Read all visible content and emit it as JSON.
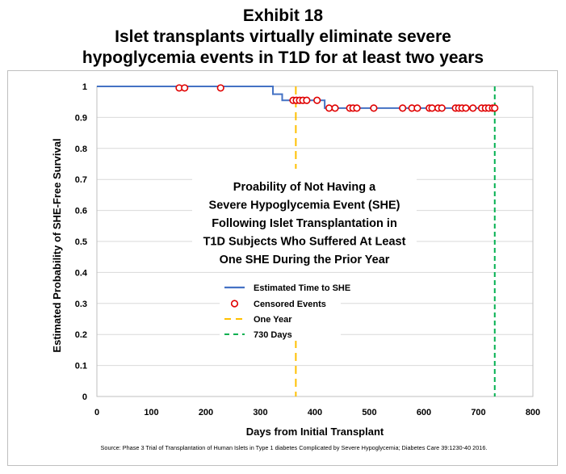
{
  "header": {
    "line1": "Exhibit 18",
    "line2": "Islet transplants virtually eliminate severe",
    "line3": "hypoglycemia events in T1D for at least two years"
  },
  "chart_data": {
    "type": "line",
    "xlabel": "Days from Initial Transplant",
    "ylabel": "Estimated Probability of SHE-Free Survival",
    "xlim": [
      0,
      800
    ],
    "ylim": [
      0,
      1
    ],
    "xticks": [
      0,
      100,
      200,
      300,
      400,
      500,
      600,
      700,
      800
    ],
    "yticks": [
      0,
      0.1,
      0.2,
      0.3,
      0.4,
      0.5,
      0.6,
      0.7,
      0.8,
      0.9,
      1
    ],
    "ytick_labels": [
      "0",
      "0.1",
      "0.2",
      "0.3",
      "0.4",
      "0.5",
      "0.6",
      "0.7",
      "0.8",
      "0.9",
      "1"
    ],
    "grid": "horizontal",
    "series": [
      {
        "name": "Estimated Time to SHE",
        "style": "step",
        "color": "#4472c4",
        "x": [
          0,
          323,
          323,
          340,
          340,
          418,
          418,
          730
        ],
        "y": [
          1.0,
          1.0,
          0.975,
          0.975,
          0.955,
          0.955,
          0.93,
          0.93
        ]
      },
      {
        "name": "Censored Events",
        "style": "marker",
        "color": "#e00000",
        "x": [
          151,
          161,
          227,
          360,
          366,
          372,
          378,
          385,
          404,
          426,
          437,
          464,
          470,
          477,
          508,
          561,
          578,
          588,
          610,
          615,
          626,
          633,
          658,
          664,
          670,
          677,
          690,
          706,
          713,
          719,
          726,
          730
        ],
        "y": [
          0.995,
          0.995,
          0.995,
          0.955,
          0.955,
          0.955,
          0.955,
          0.955,
          0.955,
          0.93,
          0.93,
          0.93,
          0.93,
          0.93,
          0.93,
          0.93,
          0.93,
          0.93,
          0.93,
          0.93,
          0.93,
          0.93,
          0.93,
          0.93,
          0.93,
          0.93,
          0.93,
          0.93,
          0.93,
          0.93,
          0.93,
          0.93
        ]
      }
    ],
    "reference_lines": [
      {
        "name": "One Year",
        "x": 365,
        "color": "#ffc000"
      },
      {
        "name": "730 Days",
        "x": 730,
        "color": "#00b050"
      }
    ],
    "annotation": [
      "Proability of Not Having a",
      "Severe Hypoglycemia Event (SHE)",
      "Following Islet Transplantation in",
      "T1D Subjects Who Suffered At Least",
      "One SHE During the Prior Year"
    ],
    "legend": {
      "placement": "center",
      "items": [
        "Estimated Time to SHE",
        "Censored Events",
        "One Year",
        "730 Days"
      ]
    },
    "source": "Source:  Phase 3 Trial of Transplantation of Human Islets in Type 1 diabetes Complicated by Severe Hypoglycemia; Diabetes Care 39:1230-40 2016."
  }
}
